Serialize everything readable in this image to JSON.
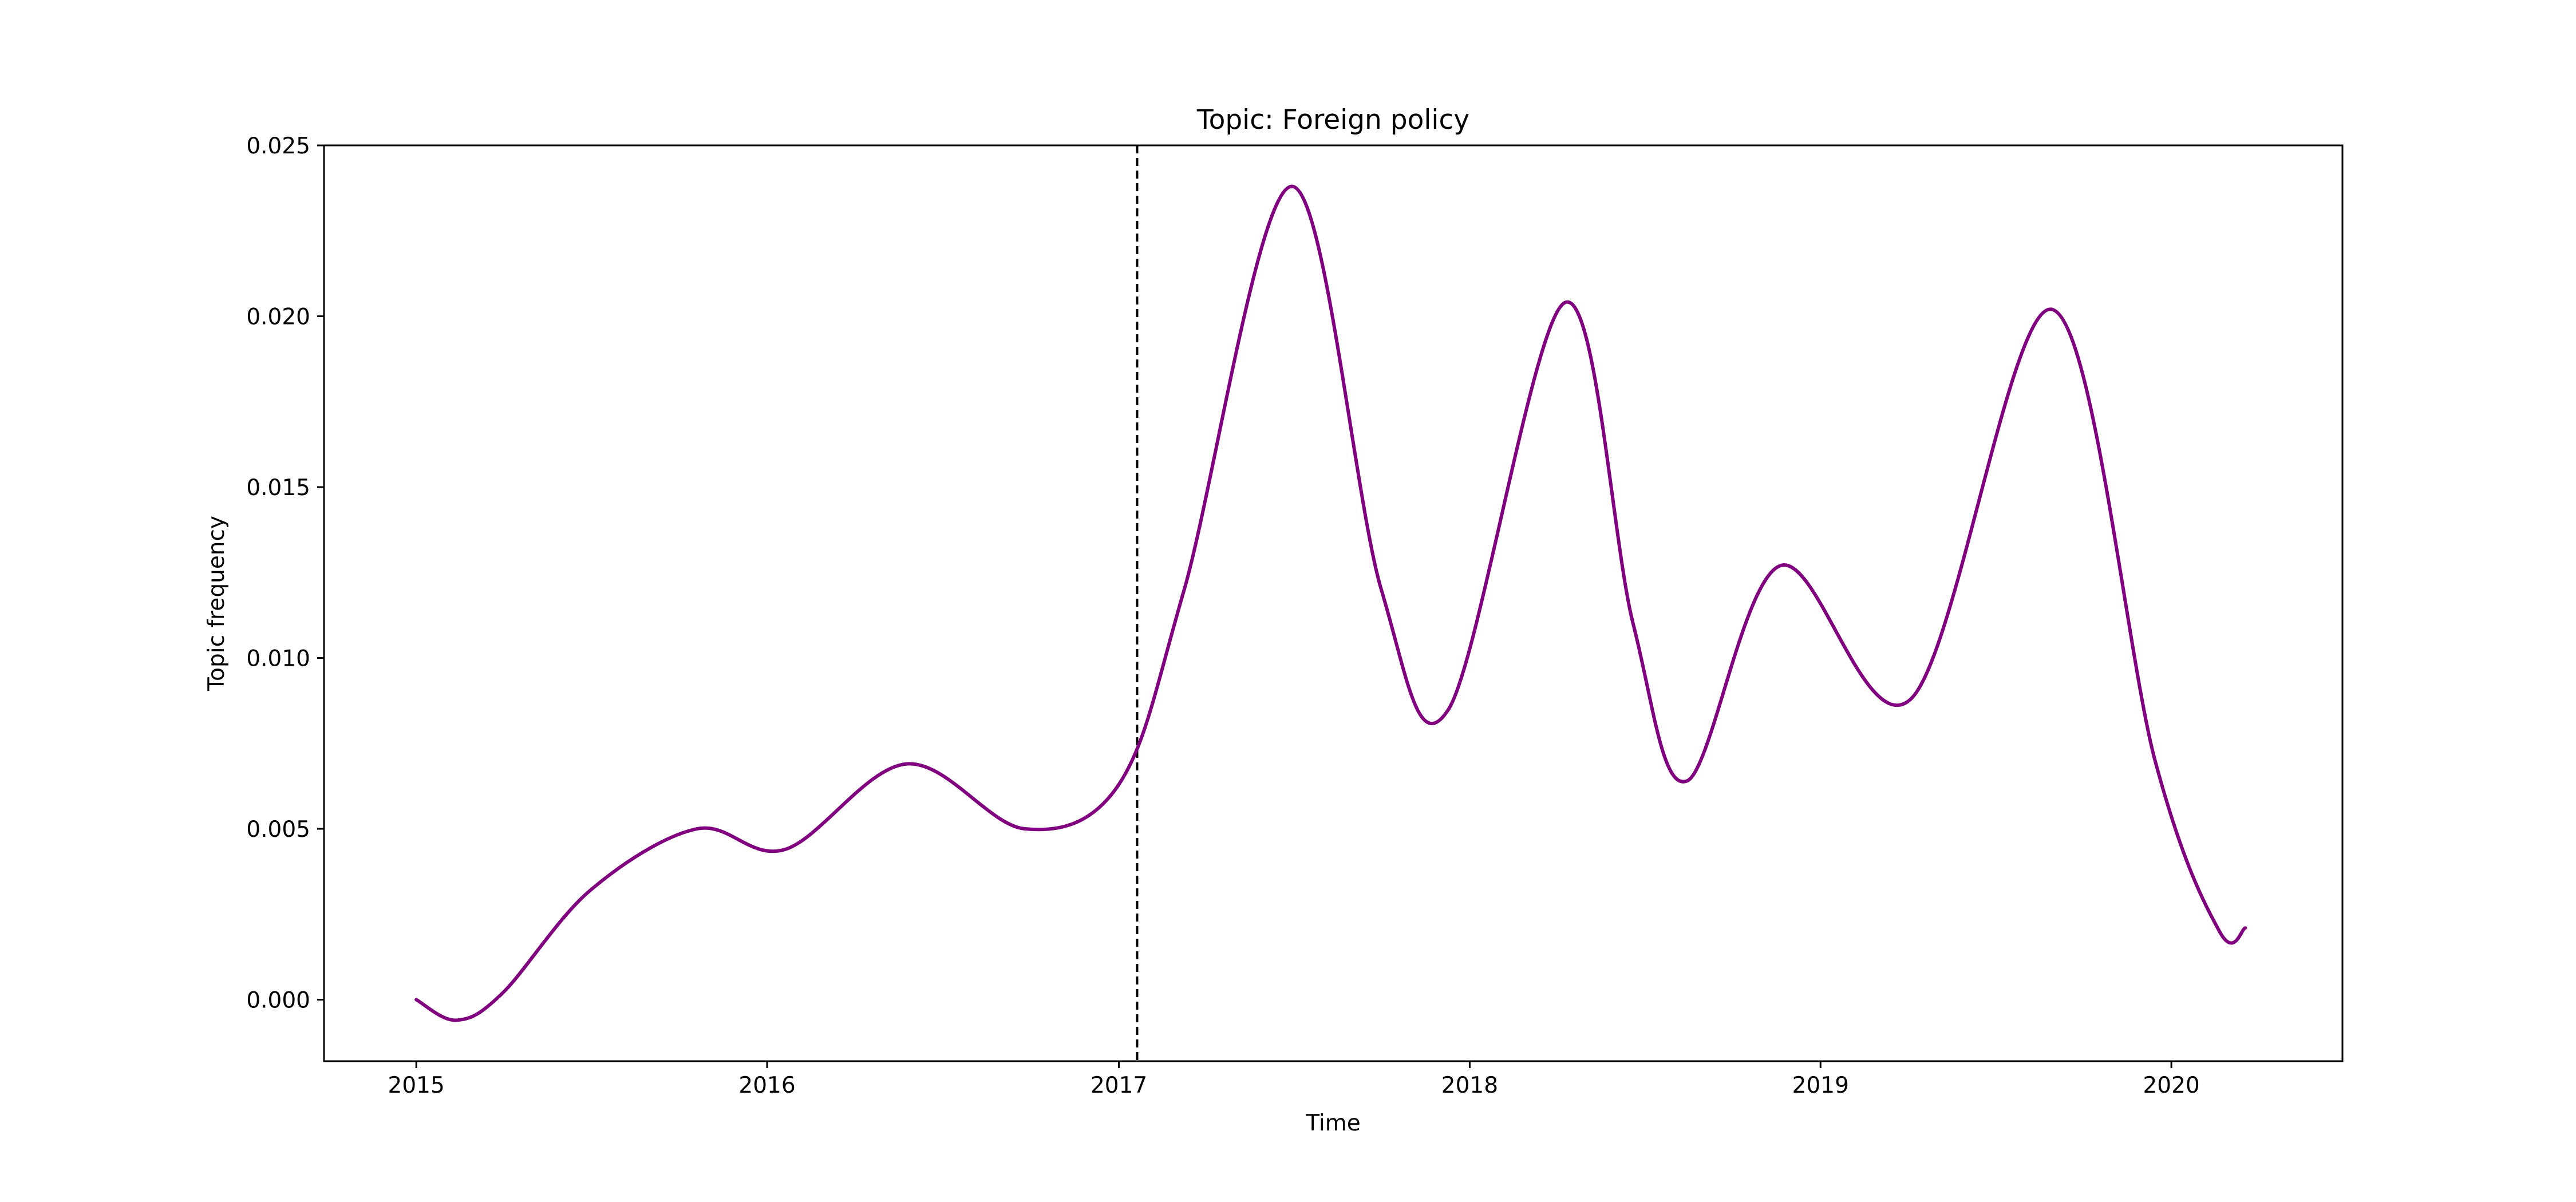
{
  "chart_data": {
    "type": "line",
    "title": "Topic: Foreign policy",
    "xlabel": "Time",
    "ylabel": "Topic frequency",
    "x_scale": "date",
    "xlim": [
      "2014-09-27",
      "2020-06-27"
    ],
    "ylim": [
      -0.0018,
      0.025
    ],
    "x_ticks": [
      {
        "date": "2015-01-01",
        "label": "2015"
      },
      {
        "date": "2016-01-01",
        "label": "2016"
      },
      {
        "date": "2017-01-01",
        "label": "2017"
      },
      {
        "date": "2018-01-01",
        "label": "2018"
      },
      {
        "date": "2019-01-01",
        "label": "2019"
      },
      {
        "date": "2020-01-01",
        "label": "2020"
      }
    ],
    "y_ticks": [
      {
        "value": 0.0,
        "label": "0.000"
      },
      {
        "value": 0.005,
        "label": "0.005"
      },
      {
        "value": 0.01,
        "label": "0.010"
      },
      {
        "value": 0.015,
        "label": "0.015"
      },
      {
        "value": 0.02,
        "label": "0.020"
      },
      {
        "value": 0.025,
        "label": "0.025"
      }
    ],
    "grid": false,
    "legend": "none",
    "reference_line": {
      "x": "2017-01-20",
      "style": "dashed",
      "color": "#000000"
    },
    "series": [
      {
        "color": "#800080",
        "points": [
          [
            "2015-01-01",
            0.0
          ],
          [
            "2015-02-12",
            -0.0006
          ],
          [
            "2015-04-01",
            0.0002
          ],
          [
            "2015-07-01",
            0.0032
          ],
          [
            "2015-10-20",
            0.005
          ],
          [
            "2016-01-20",
            0.0044
          ],
          [
            "2016-05-25",
            0.0069
          ],
          [
            "2016-09-25",
            0.005
          ],
          [
            "2017-01-01",
            0.0063
          ],
          [
            "2017-03-10",
            0.012
          ],
          [
            "2017-06-30",
            0.0238
          ],
          [
            "2017-10-01",
            0.012
          ],
          [
            "2017-12-10",
            0.0085
          ],
          [
            "2018-04-10",
            0.0204
          ],
          [
            "2018-06-20",
            0.011
          ],
          [
            "2018-08-15",
            0.0064
          ],
          [
            "2018-11-20",
            0.0127
          ],
          [
            "2019-04-05",
            0.0088
          ],
          [
            "2019-08-30",
            0.0202
          ],
          [
            "2019-12-15",
            0.007
          ],
          [
            "2020-02-20",
            0.002
          ],
          [
            "2020-03-18",
            0.0021
          ]
        ]
      }
    ]
  }
}
